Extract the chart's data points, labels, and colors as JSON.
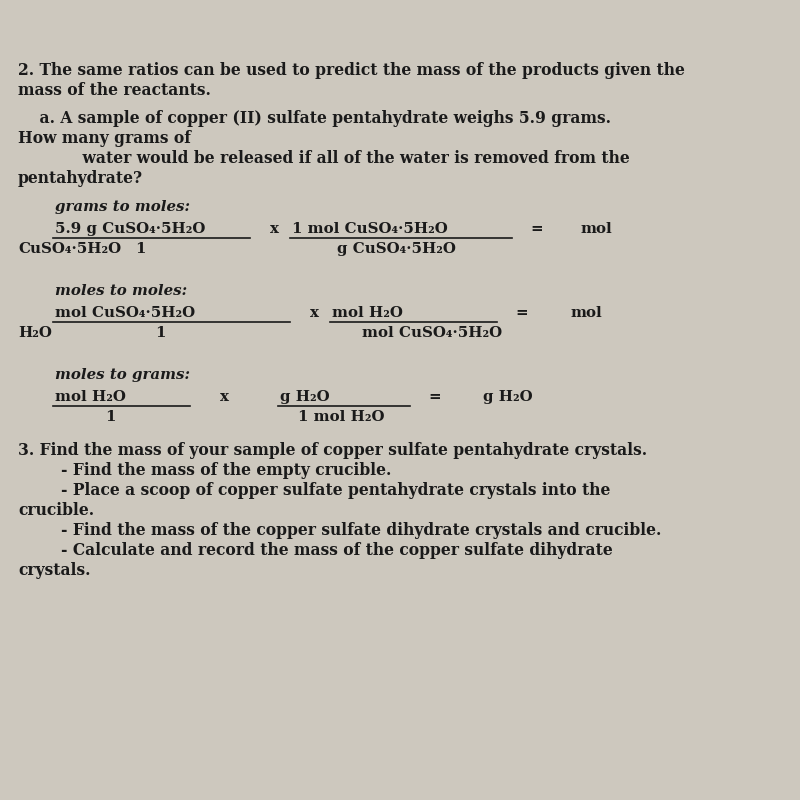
{
  "bg_color": "#cdc8be",
  "text_color": "#1a1a1a",
  "figsize": [
    8.0,
    8.0
  ],
  "dpi": 100,
  "title_line1": "2. The same ratios can be used to predict the mass of the products given the",
  "title_line2": "mass of the reactants.",
  "qa_line1": "    a. A sample of copper (II) sulfate pentahydrate weighs 5.9 grams.",
  "qa_line2": "How many grams of",
  "qa_line3": "            water would be released if all of the water is removed from the",
  "qa_line4": "pentahydrate?",
  "s1_label": "grams to moles:",
  "s1_num_left": "5.9 g CuSO₄·5H₂O",
  "s1_x": "x",
  "s1_num_right": "1 mol CuSO₄·5H₂O",
  "s1_eq": "=",
  "s1_result": "mol",
  "s1_denom_left": "1",
  "s1_denom_right": "g CuSO₄·5H₂O",
  "s1_result_bottom": "CuSO₄·5H₂O",
  "s2_label": "moles to moles:",
  "s2_num_left": "mol CuSO₄·5H₂O",
  "s2_x": "x",
  "s2_num_right": "mol H₂O",
  "s2_eq": "=",
  "s2_result": "mol",
  "s2_denom_left": "1",
  "s2_denom_right": "mol CuSO₄·5H₂O",
  "s2_result_bottom": "H₂O",
  "s3_label": "moles to grams:",
  "s3_num_left": "mol H₂O",
  "s3_x": "x",
  "s3_num_right": "g H₂O",
  "s3_eq": "=",
  "s3_result": "g H₂O",
  "s3_denom_left": "1",
  "s3_denom_right": "1 mol H₂O",
  "p3_line1": "3. Find the mass of your sample of copper sulfate pentahydrate crystals.",
  "p3_line2": "        - Find the mass of the empty crucible.",
  "p3_line3": "        - Place a scoop of copper sulfate pentahydrate crystals into the",
  "p3_line4": "crucible.",
  "p3_line5": "        - Find the mass of the copper sulfate dihydrate crystals and crucible.",
  "p3_line6": "        - Calculate and record the mass of the copper sulfate dihydrate",
  "p3_line7": "crystals."
}
